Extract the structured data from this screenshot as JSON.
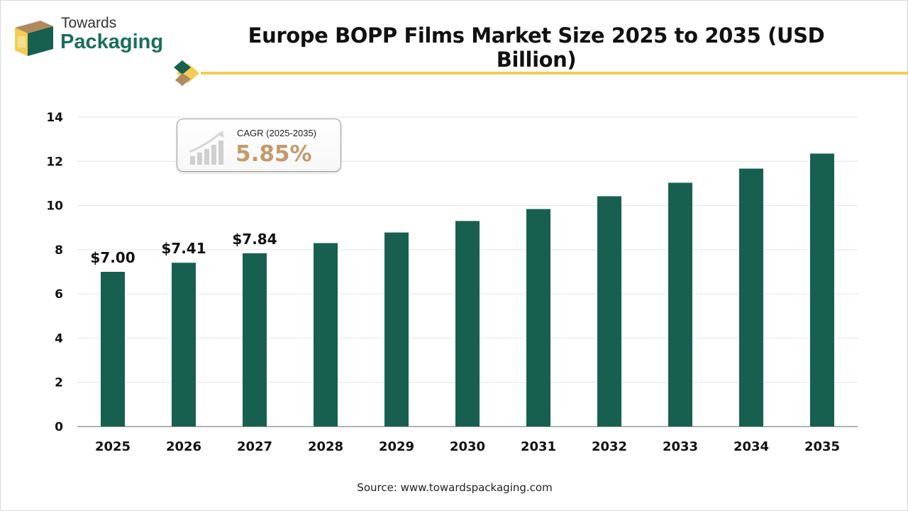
{
  "brand": {
    "name_top": "Towards",
    "name_bottom": "Packaging"
  },
  "colors": {
    "bar": "#17604f",
    "accent_gold": "#f2cd55",
    "brand_green": "#1a6e5c",
    "cagr_text": "#c49a6c",
    "grid": "#e4e4e4"
  },
  "cagr": {
    "label": "CAGR (2025-2035)",
    "value": "5.85%",
    "icon": "growth-chart-icon"
  },
  "source": "Source: www.towardspackaging.com",
  "chart_data": {
    "type": "bar",
    "title": "Europe BOPP Films Market Size 2025 to 2035 (USD Billion)",
    "xlabel": "",
    "ylabel": "",
    "categories": [
      "2025",
      "2026",
      "2027",
      "2028",
      "2029",
      "2030",
      "2031",
      "2032",
      "2033",
      "2034",
      "2035"
    ],
    "values": [
      7.0,
      7.41,
      7.84,
      8.3,
      8.78,
      9.3,
      9.84,
      10.42,
      11.03,
      11.67,
      12.35
    ],
    "data_labels": [
      "$7.00",
      "$7.41",
      "$7.84",
      null,
      null,
      null,
      null,
      null,
      null,
      null,
      null
    ],
    "ylim": [
      0,
      14
    ],
    "yticks": [
      "0",
      "2",
      "4",
      "6",
      "8",
      "10",
      "12",
      "14"
    ],
    "grid": true,
    "legend": "none"
  }
}
